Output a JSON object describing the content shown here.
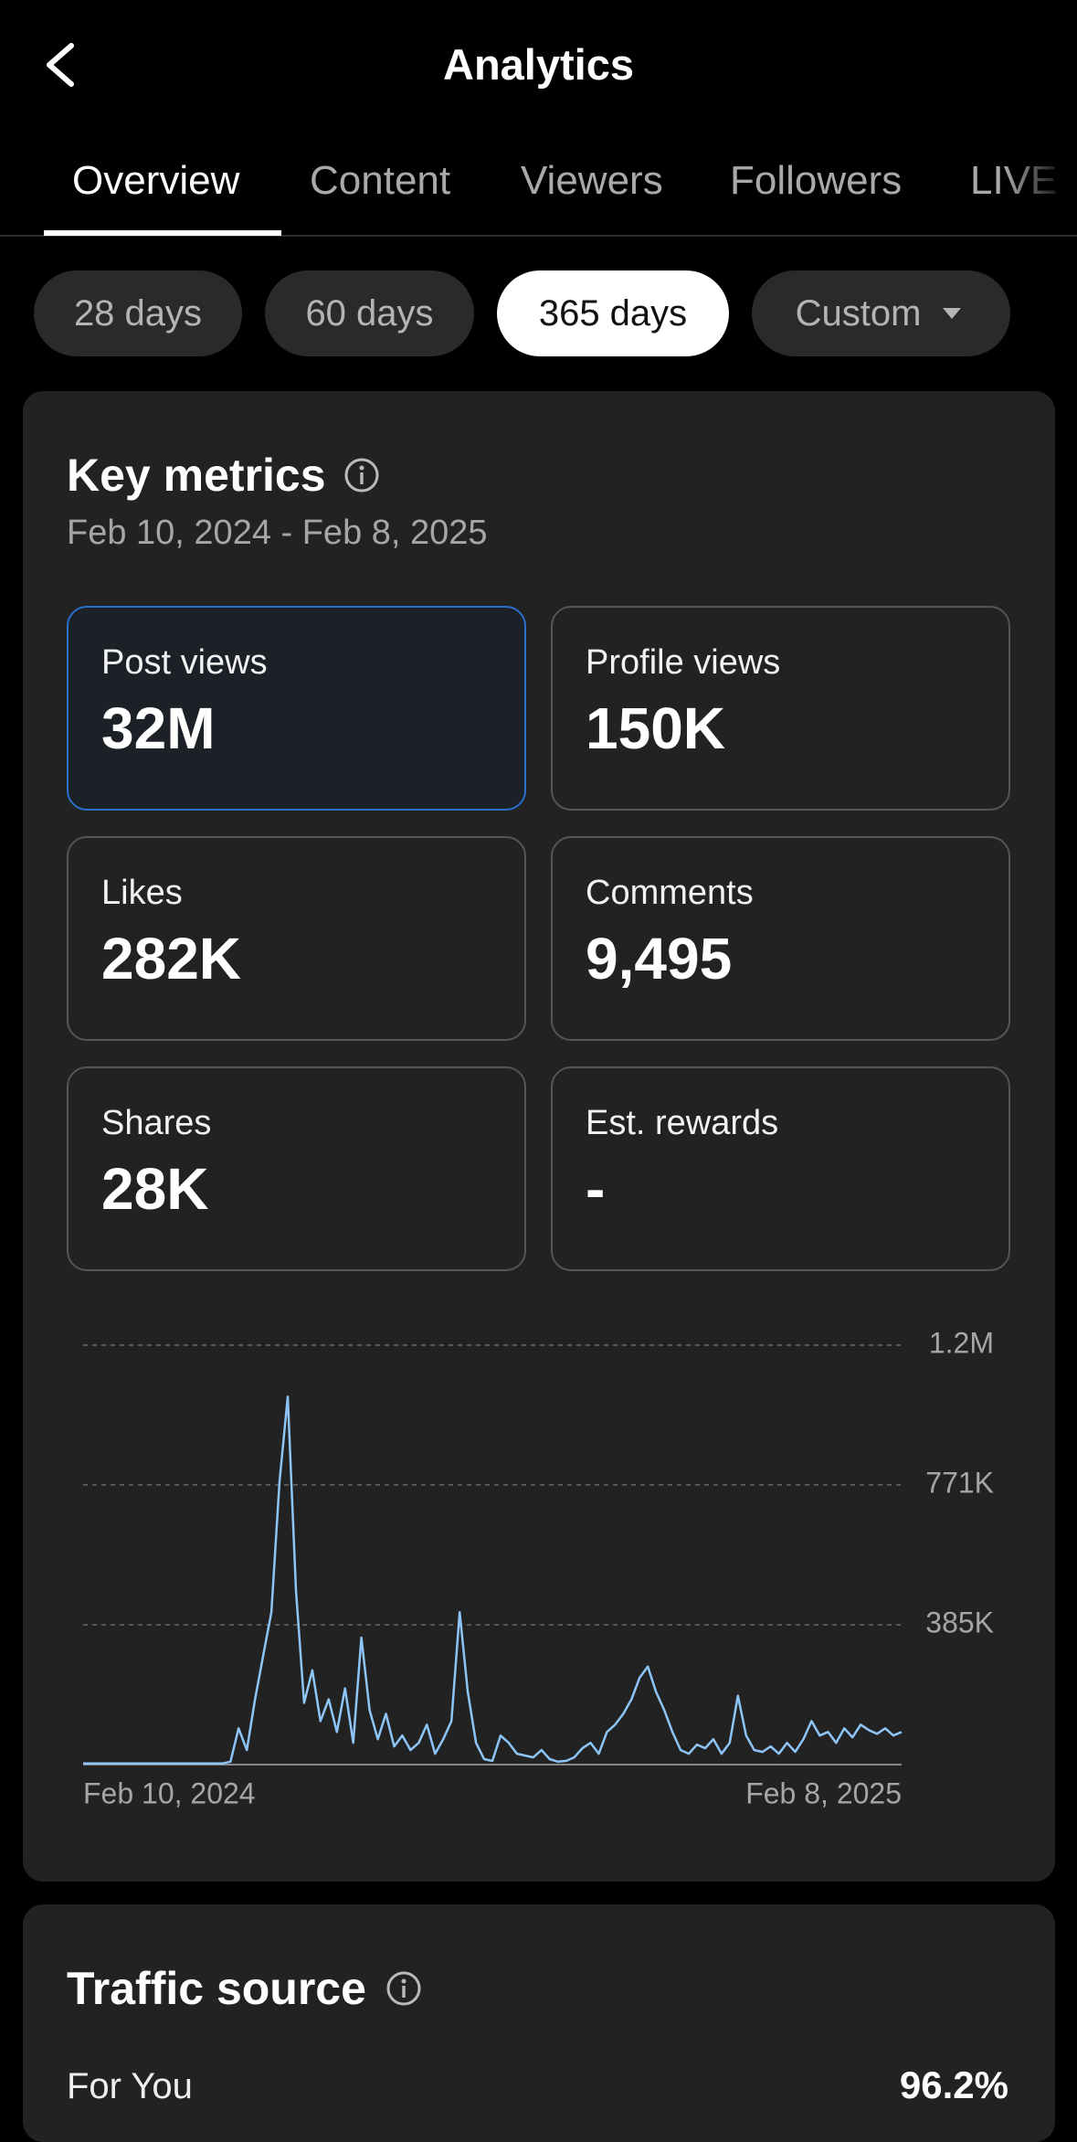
{
  "header": {
    "title": "Analytics"
  },
  "tabs": [
    "Overview",
    "Content",
    "Viewers",
    "Followers",
    "LIVE"
  ],
  "date_ranges": [
    "28 days",
    "60 days",
    "365 days",
    "Custom"
  ],
  "key_metrics": {
    "title": "Key metrics",
    "date_range": "Feb 10, 2024 - Feb 8, 2025",
    "metrics": [
      {
        "label": "Post views",
        "value": "32M"
      },
      {
        "label": "Profile views",
        "value": "150K"
      },
      {
        "label": "Likes",
        "value": "282K"
      },
      {
        "label": "Comments",
        "value": "9,495"
      },
      {
        "label": "Shares",
        "value": "28K"
      },
      {
        "label": "Est. rewards",
        "value": "-"
      }
    ]
  },
  "chart_data": {
    "type": "line",
    "color": "#8ec5f7",
    "grid": true,
    "categories": [
      "Feb 10, 2024",
      null,
      null,
      null,
      null,
      null,
      null,
      null,
      null,
      null,
      null,
      null,
      null,
      null,
      null,
      null,
      null,
      null,
      null,
      null,
      null,
      null,
      null,
      null,
      null,
      null,
      null,
      null,
      null,
      null,
      null,
      null,
      null,
      null,
      null,
      null,
      null,
      null,
      null,
      null,
      null,
      null,
      null,
      null,
      null,
      null,
      null,
      null,
      null,
      null,
      null,
      null,
      null,
      null,
      null,
      null,
      null,
      null,
      null,
      null,
      null,
      null,
      null,
      null,
      null,
      null,
      null,
      null,
      null,
      null,
      null,
      null,
      null,
      null,
      null,
      null,
      null,
      null,
      null,
      null,
      null,
      null,
      null,
      null,
      null,
      null,
      null,
      null,
      null,
      null,
      null,
      null,
      null,
      null,
      null,
      null,
      null,
      null,
      null,
      null,
      "Feb 8, 2025"
    ],
    "values": [
      3000,
      3000,
      3000,
      3000,
      3000,
      3000,
      3000,
      3000,
      3000,
      3000,
      3000,
      3000,
      3000,
      3000,
      3000,
      3000,
      3000,
      3000,
      8000,
      100000,
      40000,
      180000,
      300000,
      420000,
      780000,
      1014000,
      480000,
      170000,
      260000,
      120000,
      180000,
      90000,
      210000,
      60000,
      350000,
      150000,
      70000,
      140000,
      50000,
      80000,
      40000,
      60000,
      110000,
      30000,
      70000,
      120000,
      420000,
      200000,
      60000,
      15000,
      10000,
      80000,
      60000,
      30000,
      25000,
      20000,
      40000,
      15000,
      8000,
      10000,
      20000,
      45000,
      60000,
      30000,
      90000,
      110000,
      140000,
      180000,
      240000,
      270000,
      200000,
      150000,
      90000,
      40000,
      30000,
      55000,
      45000,
      70000,
      30000,
      60000,
      190000,
      80000,
      40000,
      35000,
      50000,
      30000,
      60000,
      35000,
      70000,
      120000,
      80000,
      90000,
      60000,
      100000,
      75000,
      110000,
      95000,
      85000,
      100000,
      80000,
      90000
    ],
    "ylim": [
      0,
      1156000
    ],
    "yticks": [
      {
        "value": 385000,
        "label": "385K"
      },
      {
        "value": 771000,
        "label": "771K"
      },
      {
        "value": 1156000,
        "label": "1.2M"
      }
    ]
  },
  "traffic_source": {
    "title": "Traffic source",
    "rows": [
      {
        "label": "For You",
        "value": "96.2%"
      }
    ]
  }
}
